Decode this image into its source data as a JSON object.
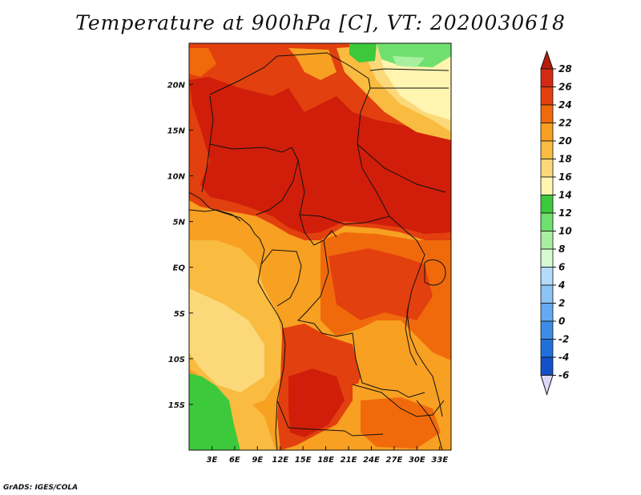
{
  "title": "Temperature at 900hPa [C], VT: 2020030618",
  "credit": "GrADS: IGES/COLA",
  "map": {
    "lon_range": [
      0,
      34.5
    ],
    "lat_range": [
      -20,
      24.5
    ],
    "lon_ticks": [
      {
        "value": 3,
        "label": "3E"
      },
      {
        "value": 6,
        "label": "6E"
      },
      {
        "value": 9,
        "label": "9E"
      },
      {
        "value": 12,
        "label": "12E"
      },
      {
        "value": 15,
        "label": "15E"
      },
      {
        "value": 18,
        "label": "18E"
      },
      {
        "value": 21,
        "label": "21E"
      },
      {
        "value": 24,
        "label": "24E"
      },
      {
        "value": 27,
        "label": "27E"
      },
      {
        "value": 30,
        "label": "30E"
      },
      {
        "value": 33,
        "label": "33E"
      }
    ],
    "lat_ticks": [
      {
        "value": 20,
        "label": "20N"
      },
      {
        "value": 15,
        "label": "15N"
      },
      {
        "value": 10,
        "label": "10N"
      },
      {
        "value": 5,
        "label": "5N"
      },
      {
        "value": 0,
        "label": "EQ"
      },
      {
        "value": -5,
        "label": "5S"
      },
      {
        "value": -10,
        "label": "10S"
      },
      {
        "value": -15,
        "label": "15S"
      }
    ]
  },
  "colorbar": {
    "levels": [
      {
        "label": "28",
        "color": "#d42a14"
      },
      {
        "label": "26",
        "color": "#e2400e"
      },
      {
        "label": "24",
        "color": "#f06a0c"
      },
      {
        "label": "22",
        "color": "#f7a021"
      },
      {
        "label": "20",
        "color": "#f9bb40"
      },
      {
        "label": "18",
        "color": "#fbd97a"
      },
      {
        "label": "16",
        "color": "#fff4b0"
      },
      {
        "label": "14",
        "color": "#3cc93c"
      },
      {
        "label": "12",
        "color": "#6fe06f"
      },
      {
        "label": "10",
        "color": "#a8f0a0"
      },
      {
        "label": "8",
        "color": "#d8fad2"
      },
      {
        "label": "6",
        "color": "#b4dcfa"
      },
      {
        "label": "4",
        "color": "#8cc4f5"
      },
      {
        "label": "2",
        "color": "#64aaf0"
      },
      {
        "label": "0",
        "color": "#3c8ce6"
      },
      {
        "label": "-2",
        "color": "#2070dc"
      },
      {
        "label": "-4",
        "color": "#1450c8"
      },
      {
        "label": "-6",
        "color": "#0c30a8"
      }
    ],
    "top_color": "#b41e0a",
    "bottom_color": "#dcd8f8",
    "bottom_band_color": "#0a1e6e"
  },
  "field_colors": {
    "hot28": "#d01e0a",
    "t26": "#e2400e",
    "t24": "#f06a0c",
    "t22": "#f7a021",
    "t20": "#f9bb40",
    "t18": "#fbd97a",
    "t16": "#fff4b0",
    "green": "#3cc93c",
    "lightgreen": "#6fe06f",
    "palegreen": "#a8f0a0"
  }
}
